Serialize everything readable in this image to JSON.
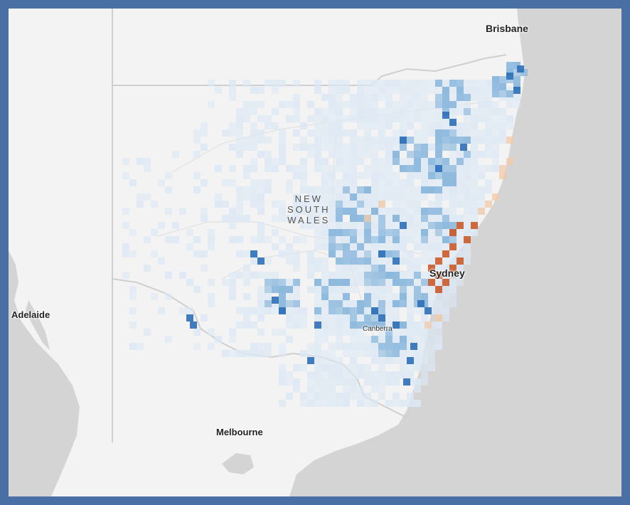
{
  "map": {
    "region_label": [
      "NEW",
      "SOUTH",
      "WALES"
    ],
    "cities": {
      "brisbane": "Brisbane",
      "sydney": "Sydney",
      "canberra": "Canberra",
      "adelaide": "Adelaide",
      "melbourne": "Melbourne"
    },
    "colors": {
      "frame": "#4a6fa5",
      "land": "#f3f3f3",
      "ocean": "#d4d4d4",
      "border": "#cfcfcf",
      "low_blue": "#dce8f4",
      "mid_blue": "#8db9dd",
      "high_blue": "#2f6fb8",
      "low_orange": "#f2c9a8",
      "high_orange": "#c8521f"
    }
  }
}
